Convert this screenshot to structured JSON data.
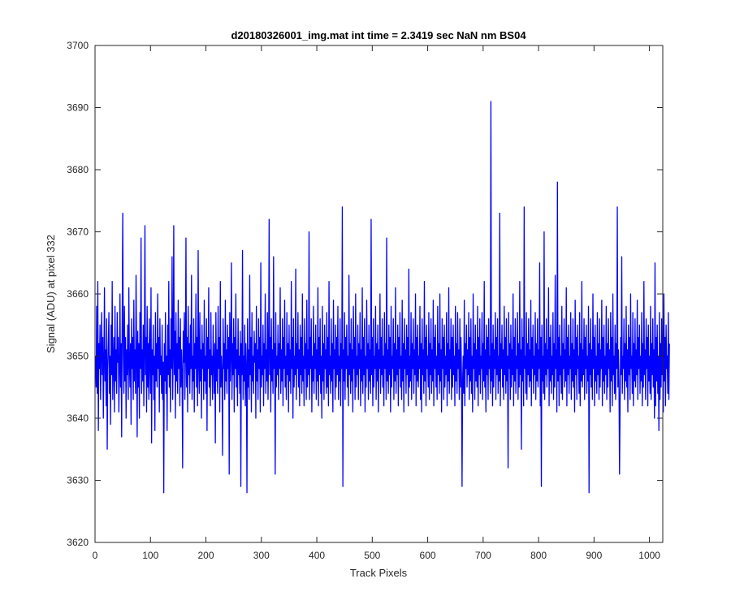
{
  "chart_data": {
    "type": "line",
    "title": "d20180326001_img.mat int time = 2.3419 sec  NaN nm BS04",
    "xlabel": "Track Pixels",
    "ylabel": "Signal (ADU) at pixel 332",
    "xlim": [
      0,
      1024
    ],
    "ylim": [
      3620,
      3700
    ],
    "x_ticks": [
      0,
      100,
      200,
      300,
      400,
      500,
      600,
      700,
      800,
      900,
      1000
    ],
    "y_ticks": [
      3620,
      3630,
      3640,
      3650,
      3660,
      3670,
      3680,
      3690,
      3700
    ],
    "grid": false,
    "legend": "none",
    "series": [
      {
        "color": "#0000ff",
        "x_start": 1,
        "x_step": 1,
        "values": [
          3650,
          3645,
          3658,
          3644,
          3662,
          3638,
          3652,
          3648,
          3655,
          3643,
          3650,
          3657,
          3647,
          3653,
          3640,
          3649,
          3661,
          3646,
          3651,
          3642,
          3656,
          3635,
          3648,
          3652,
          3657,
          3644,
          3650,
          3639,
          3655,
          3647,
          3662,
          3643,
          3649,
          3653,
          3641,
          3658,
          3646,
          3651,
          3644,
          3657,
          3649,
          3653,
          3641,
          3648,
          3660,
          3645,
          3652,
          3637,
          3656,
          3673,
          3650,
          3644,
          3658,
          3646,
          3653,
          3640,
          3651,
          3647,
          3655,
          3643,
          3661,
          3649,
          3645,
          3652,
          3639,
          3656,
          3648,
          3653,
          3643,
          3659,
          3646,
          3651,
          3644,
          3663,
          3650,
          3637,
          3654,
          3645,
          3652,
          3640,
          3657,
          3648,
          3669,
          3644,
          3651,
          3646,
          3655,
          3642,
          3650,
          3671,
          3647,
          3653,
          3641,
          3658,
          3645,
          3652,
          3643,
          3656,
          3649,
          3644,
          3661,
          3636,
          3651,
          3647,
          3655,
          3643,
          3650,
          3638,
          3657,
          3646,
          3652,
          3645,
          3660,
          3648,
          3653,
          3641,
          3656,
          3647,
          3650,
          3644,
          3655,
          3643,
          3649,
          3628,
          3652,
          3646,
          3657,
          3644,
          3650,
          3638,
          3655,
          3647,
          3662,
          3645,
          3651,
          3641,
          3656,
          3648,
          3666,
          3643,
          3650,
          3671,
          3647,
          3654,
          3640,
          3657,
          3646,
          3652,
          3644,
          3659,
          3648,
          3653,
          3642,
          3656,
          3645,
          3651,
          3647,
          3632,
          3654,
          3649,
          3657,
          3643,
          3650,
          3669,
          3645,
          3653,
          3641,
          3658,
          3647,
          3652,
          3644,
          3655,
          3648,
          3663,
          3643,
          3650,
          3646,
          3656,
          3641,
          3652,
          3648,
          3660,
          3645,
          3653,
          3642,
          3667,
          3649,
          3644,
          3657,
          3646,
          3651,
          3640,
          3655,
          3648,
          3652,
          3643,
          3659,
          3646,
          3650,
          3644,
          3656,
          3638,
          3653,
          3648,
          3661,
          3645,
          3651,
          3642,
          3657,
          3647,
          3650,
          3643,
          3655,
          3649,
          3644,
          3652,
          3636,
          3657,
          3646,
          3651,
          3644,
          3658,
          3648,
          3653,
          3641,
          3662,
          3645,
          3650,
          3647,
          3634,
          3656,
          3648,
          3652,
          3643,
          3659,
          3646,
          3651,
          3644,
          3655,
          3648,
          3653,
          3631,
          3657,
          3646,
          3650,
          3665,
          3643,
          3652,
          3647,
          3656,
          3641,
          3653,
          3648,
          3660,
          3645,
          3651,
          3642,
          3656,
          3647,
          3650,
          3644,
          3654,
          3629,
          3652,
          3647,
          3667,
          3643,
          3650,
          3646,
          3655,
          3642,
          3652,
          3648,
          3628,
          3656,
          3645,
          3651,
          3643,
          3663,
          3647,
          3653,
          3641,
          3657,
          3646,
          3650,
          3644,
          3654,
          3649,
          3652,
          3640,
          3658,
          3646,
          3651,
          3643,
          3656,
          3648,
          3653,
          3641,
          3665,
          3645,
          3650,
          3647,
          3655,
          3642,
          3652,
          3648,
          3660,
          3644,
          3651,
          3646,
          3657,
          3643,
          3650,
          3672,
          3647,
          3653,
          3641,
          3656,
          3646,
          3651,
          3644,
          3666,
          3648,
          3652,
          3631,
          3657,
          3645,
          3650,
          3647,
          3655,
          3643,
          3652,
          3648,
          3661,
          3644,
          3651,
          3646,
          3656,
          3642,
          3653,
          3648,
          3659,
          3645,
          3650,
          3643,
          3657,
          3647,
          3652,
          3641,
          3655,
          3646,
          3651,
          3644,
          3662,
          3648,
          3653,
          3640,
          3656,
          3645,
          3650,
          3647,
          3664,
          3643,
          3652,
          3648,
          3657,
          3645,
          3651,
          3642,
          3655,
          3647,
          3653,
          3644,
          3660,
          3646,
          3650,
          3642,
          3656,
          3648,
          3652,
          3643,
          3659,
          3645,
          3651,
          3647,
          3670,
          3643,
          3653,
          3648,
          3656,
          3641,
          3650,
          3646,
          3658,
          3644,
          3652,
          3648,
          3655,
          3643,
          3651,
          3646,
          3661,
          3642,
          3653,
          3647,
          3656,
          3644,
          3650,
          3640,
          3658,
          3646,
          3652,
          3643,
          3655,
          3648,
          3651,
          3644,
          3657,
          3645,
          3653,
          3642,
          3662,
          3647,
          3650,
          3644,
          3656,
          3646,
          3652,
          3641,
          3659,
          3648,
          3651,
          3643,
          3655,
          3645,
          3653,
          3647,
          3658,
          3643,
          3650,
          3646,
          3656,
          3642,
          3652,
          3648,
          3674,
          3629,
          3651,
          3646,
          3657,
          3643,
          3653,
          3648,
          3655,
          3645,
          3650,
          3642,
          3663,
          3647,
          3652,
          3644,
          3656,
          3646,
          3651,
          3641,
          3658,
          3648,
          3653,
          3643,
          3660,
          3645,
          3650,
          3647,
          3655,
          3643,
          3652,
          3648,
          3657,
          3642,
          3651,
          3646,
          3661,
          3644,
          3653,
          3647,
          3656,
          3641,
          3650,
          3645,
          3659,
          3648,
          3652,
          3643,
          3655,
          3646,
          3651,
          3644,
          3672,
          3647,
          3653,
          3642,
          3656,
          3645,
          3650,
          3648,
          3658,
          3643,
          3652,
          3646,
          3655,
          3641,
          3651,
          3648,
          3660,
          3644,
          3653,
          3647,
          3656,
          3645,
          3650,
          3642,
          3657,
          3648,
          3652,
          3643,
          3669,
          3646,
          3651,
          3644,
          3655,
          3647,
          3653,
          3641,
          3658,
          3645,
          3650,
          3648,
          3656,
          3643,
          3652,
          3646,
          3661,
          3644,
          3651,
          3647,
          3655,
          3642,
          3653,
          3648,
          3657,
          3645,
          3650,
          3643,
          3659,
          3646,
          3652,
          3641,
          3656,
          3648,
          3651,
          3644,
          3655,
          3647,
          3653,
          3642,
          3664,
          3645,
          3650,
          3646,
          3657,
          3643,
          3652,
          3648,
          3656,
          3644,
          3651,
          3647,
          3660,
          3642,
          3653,
          3646,
          3655,
          3645,
          3650,
          3648,
          3658,
          3643,
          3652,
          3641,
          3656,
          3647,
          3651,
          3644,
          3662,
          3646,
          3653,
          3642,
          3655,
          3648,
          3650,
          3645,
          3657,
          3643,
          3652,
          3647,
          3656,
          3644,
          3651,
          3646,
          3659,
          3642,
          3653,
          3648,
          3655,
          3645,
          3650,
          3643,
          3658,
          3647,
          3652,
          3644,
          3660,
          3646,
          3651,
          3641,
          3656,
          3648,
          3653,
          3643,
          3655,
          3645,
          3650,
          3647,
          3657,
          3642,
          3652,
          3646,
          3661,
          3644,
          3651,
          3648,
          3656,
          3643,
          3653,
          3645,
          3655,
          3647,
          3650,
          3642,
          3658,
          3646,
          3652,
          3644,
          3657,
          3648,
          3651,
          3643,
          3656,
          3645,
          3653,
          3647,
          3629,
          3646,
          3650,
          3644,
          3659,
          3642,
          3652,
          3648,
          3655,
          3645,
          3651,
          3647,
          3657,
          3643,
          3653,
          3646,
          3656,
          3644,
          3650,
          3641,
          3660,
          3648,
          3652,
          3643,
          3655,
          3646,
          3651,
          3645,
          3658,
          3642,
          3653,
          3647,
          3656,
          3644,
          3650,
          3648,
          3657,
          3643,
          3652,
          3646,
          3662,
          3645,
          3651,
          3641,
          3655,
          3647,
          3653,
          3643,
          3656,
          3648,
          3650,
          3644,
          3691,
          3646,
          3652,
          3642,
          3655,
          3645,
          3651,
          3648,
          3657,
          3643,
          3653,
          3647,
          3656,
          3644,
          3650,
          3646,
          3673,
          3642,
          3652,
          3648,
          3655,
          3645,
          3651,
          3643,
          3658,
          3647,
          3653,
          3644,
          3656,
          3646,
          3650,
          3632,
          3657,
          3648,
          3652,
          3643,
          3655,
          3645,
          3651,
          3647,
          3660,
          3642,
          3653,
          3646,
          3656,
          3644,
          3650,
          3648,
          3657,
          3643,
          3652,
          3645,
          3662,
          3647,
          3651,
          3635,
          3656,
          3646,
          3653,
          3642,
          3674,
          3648,
          3650,
          3644,
          3657,
          3643,
          3652,
          3647,
          3656,
          3645,
          3651,
          3646,
          3659,
          3642,
          3653,
          3648,
          3655,
          3644,
          3650,
          3647,
          3657,
          3643,
          3652,
          3646,
          3656,
          3645,
          3651,
          3648,
          3665,
          3642,
          3653,
          3629,
          3655,
          3646,
          3650,
          3644,
          3670,
          3643,
          3652,
          3647,
          3656,
          3645,
          3651,
          3648,
          3661,
          3642,
          3653,
          3646,
          3655,
          3644,
          3650,
          3647,
          3657,
          3643,
          3652,
          3645,
          3663,
          3648,
          3651,
          3641,
          3678,
          3646,
          3653,
          3642,
          3655,
          3647,
          3650,
          3644,
          3658,
          3643,
          3652,
          3648,
          3656,
          3645,
          3651,
          3646,
          3661,
          3642,
          3653,
          3647,
          3655,
          3644,
          3650,
          3648,
          3657,
          3643,
          3652,
          3646,
          3656,
          3645,
          3651,
          3641,
          3659,
          3647,
          3653,
          3643,
          3655,
          3648,
          3650,
          3644,
          3657,
          3642,
          3652,
          3646,
          3662,
          3645,
          3651,
          3647,
          3656,
          3643,
          3653,
          3648,
          3655,
          3644,
          3650,
          3646,
          3658,
          3628,
          3652,
          3647,
          3656,
          3645,
          3651,
          3643,
          3660,
          3648,
          3653,
          3642,
          3655,
          3646,
          3650,
          3644,
          3657,
          3647,
          3652,
          3643,
          3656,
          3645,
          3651,
          3648,
          3659,
          3642,
          3653,
          3646,
          3655,
          3644,
          3650,
          3647,
          3658,
          3643,
          3652,
          3645,
          3656,
          3648,
          3651,
          3641,
          3657,
          3646,
          3653,
          3642,
          3660,
          3647,
          3650,
          3644,
          3655,
          3643,
          3652,
          3648,
          3674,
          3645,
          3651,
          3646,
          3631,
          3642,
          3653,
          3647,
          3666,
          3644,
          3650,
          3648,
          3656,
          3643,
          3652,
          3646,
          3658,
          3645,
          3651,
          3641,
          3655,
          3647,
          3653,
          3643,
          3660,
          3648,
          3650,
          3644,
          3657,
          3642,
          3652,
          3646,
          3656,
          3645,
          3651,
          3647,
          3659,
          3643,
          3653,
          3648,
          3655,
          3644,
          3650,
          3646,
          3657,
          3642,
          3652,
          3645,
          3662,
          3647,
          3651,
          3643,
          3656,
          3648,
          3653,
          3642,
          3655,
          3646,
          3650,
          3644,
          3658,
          3643,
          3652,
          3647,
          3656,
          3645,
          3651,
          3640,
          3665,
          3642,
          3653,
          3646,
          3655,
          3644,
          3650,
          3638,
          3657,
          3643,
          3652,
          3645,
          3656,
          3647,
          3651,
          3641,
          3660,
          3646,
          3653,
          3642,
          3655,
          3648,
          3650,
          3644,
          3657,
          3643,
          3652
        ]
      }
    ]
  }
}
